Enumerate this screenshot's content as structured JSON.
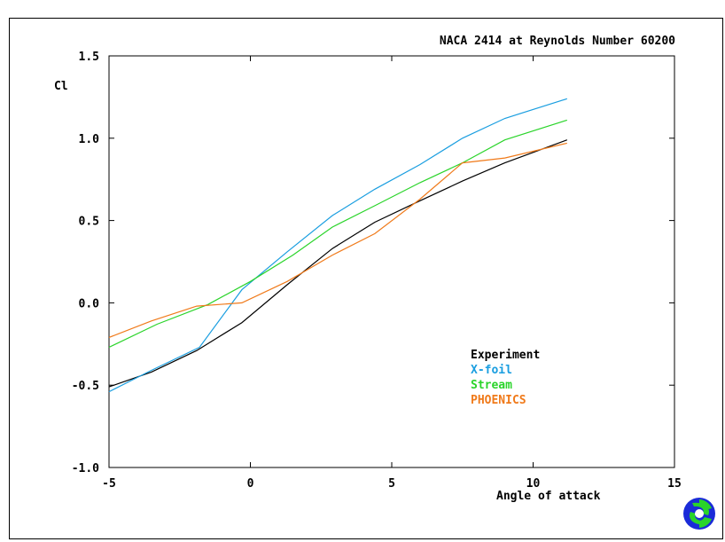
{
  "chart_data": {
    "type": "line",
    "title": "NACA 2414 at Reynolds Number 60200",
    "xlabel": "Angle of attack",
    "ylabel": "Cl",
    "xlim": [
      -5,
      15
    ],
    "ylim": [
      -1.0,
      1.5
    ],
    "xticks": [
      -5,
      0,
      5,
      10,
      15
    ],
    "xtick_labels": [
      "-5",
      "0",
      "5",
      "10",
      "15"
    ],
    "yticks": [
      1.5,
      1.0,
      0.5,
      0.0,
      -0.5,
      -1.0
    ],
    "ytick_labels": [
      "1.5",
      "1.0",
      "0.5",
      "0.0",
      "-0.5",
      "-1.0"
    ],
    "grid": false,
    "legend_position": "lower-right",
    "series": [
      {
        "name": "Experiment",
        "color": "#000000",
        "x": [
          -5.0,
          -3.5,
          -1.9,
          -0.3,
          1.3,
          2.9,
          4.4,
          6.0,
          7.5,
          9.0,
          11.2
        ],
        "y": [
          -0.51,
          -0.42,
          -0.29,
          -0.12,
          0.11,
          0.33,
          0.49,
          0.62,
          0.74,
          0.85,
          0.99
        ]
      },
      {
        "name": "X-foil",
        "color": "#1a9ee0",
        "x": [
          -5.0,
          -3.5,
          -1.8,
          -0.3,
          1.3,
          2.9,
          4.4,
          6.0,
          7.5,
          9.0,
          11.2
        ],
        "y": [
          -0.54,
          -0.41,
          -0.27,
          0.08,
          0.31,
          0.53,
          0.69,
          0.84,
          1.0,
          1.12,
          1.24
        ]
      },
      {
        "name": "Stream",
        "color": "#2ad42a",
        "x": [
          -5.0,
          -3.3,
          -1.5,
          0.0,
          1.5,
          2.9,
          4.4,
          6.0,
          7.5,
          9.0,
          11.2
        ],
        "y": [
          -0.27,
          -0.13,
          -0.01,
          0.13,
          0.29,
          0.46,
          0.59,
          0.73,
          0.85,
          0.99,
          1.11
        ]
      },
      {
        "name": "PHOENICS",
        "color": "#f07a1a",
        "x": [
          -5.0,
          -3.5,
          -1.9,
          -0.3,
          1.3,
          2.9,
          4.4,
          6.0,
          7.5,
          9.0,
          11.2
        ],
        "y": [
          -0.21,
          -0.11,
          -0.02,
          0.0,
          0.13,
          0.29,
          0.42,
          0.63,
          0.85,
          0.88,
          0.97
        ]
      }
    ]
  },
  "logo": {
    "name": "logo-icon"
  }
}
